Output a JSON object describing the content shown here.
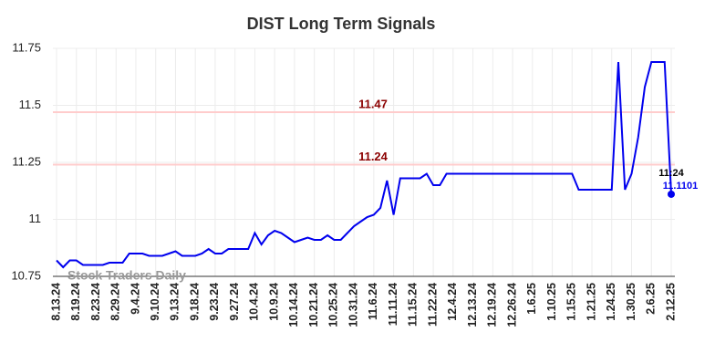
{
  "chart_data": {
    "type": "line",
    "title": "DIST Long Term Signals",
    "categories": [
      "8.13.24",
      null,
      null,
      "8.19.24",
      null,
      null,
      "8.23.24",
      null,
      null,
      "8.29.24",
      null,
      null,
      "9.4.24",
      null,
      null,
      "9.10.24",
      null,
      null,
      "9.13.24",
      null,
      null,
      "9.18.24",
      null,
      null,
      "9.23.24",
      null,
      null,
      "9.27.24",
      null,
      null,
      "10.4.24",
      null,
      null,
      "10.9.24",
      null,
      null,
      "10.14.24",
      null,
      null,
      "10.21.24",
      null,
      null,
      "10.25.24",
      null,
      null,
      "10.31.24",
      null,
      null,
      "11.6.24",
      null,
      null,
      "11.11.24",
      null,
      null,
      "11.15.24",
      null,
      null,
      "11.22.24",
      null,
      null,
      "12.4.24",
      null,
      null,
      "12.13.24",
      null,
      null,
      "12.19.24",
      null,
      null,
      "12.26.24",
      null,
      null,
      "1.6.25",
      null,
      null,
      "1.10.25",
      null,
      null,
      "1.15.25",
      null,
      null,
      "1.21.25",
      null,
      null,
      "1.24.25",
      null,
      null,
      "1.30.25",
      null,
      null,
      "2.6.25",
      null,
      null,
      "2.12.25"
    ],
    "values": [
      10.82,
      10.79,
      10.82,
      10.82,
      10.8,
      10.8,
      10.8,
      10.8,
      10.81,
      10.81,
      10.81,
      10.85,
      10.85,
      10.85,
      10.84,
      10.84,
      10.84,
      10.85,
      10.86,
      10.84,
      10.84,
      10.84,
      10.85,
      10.87,
      10.85,
      10.85,
      10.87,
      10.87,
      10.87,
      10.87,
      10.94,
      10.89,
      10.93,
      10.95,
      10.94,
      10.92,
      10.9,
      10.91,
      10.92,
      10.91,
      10.91,
      10.93,
      10.91,
      10.91,
      10.94,
      10.97,
      10.99,
      11.01,
      11.02,
      11.05,
      11.17,
      11.02,
      11.18,
      11.18,
      11.18,
      11.18,
      11.2,
      11.15,
      11.15,
      11.2,
      11.2,
      11.2,
      11.2,
      11.2,
      11.2,
      11.2,
      11.2,
      11.2,
      11.2,
      11.2,
      11.2,
      11.2,
      11.2,
      11.2,
      11.2,
      11.2,
      11.2,
      11.2,
      11.2,
      11.13,
      11.13,
      11.13,
      11.13,
      11.13,
      11.13,
      11.69,
      11.13,
      11.2,
      11.36,
      11.58,
      11.69,
      11.69,
      11.69,
      11.1101
    ],
    "color": "#0000ee",
    "reference_lines": [
      11.47,
      11.24
    ],
    "reference_color": "#ffcccc",
    "reference_label_color": "#8b0000",
    "last_time": "11:24",
    "watermark": "Stock Traders Daily",
    "ylim": [
      10.75,
      11.75
    ],
    "yticks": [
      10.75,
      11,
      11.25,
      11.5,
      11.75
    ],
    "grid": true
  }
}
